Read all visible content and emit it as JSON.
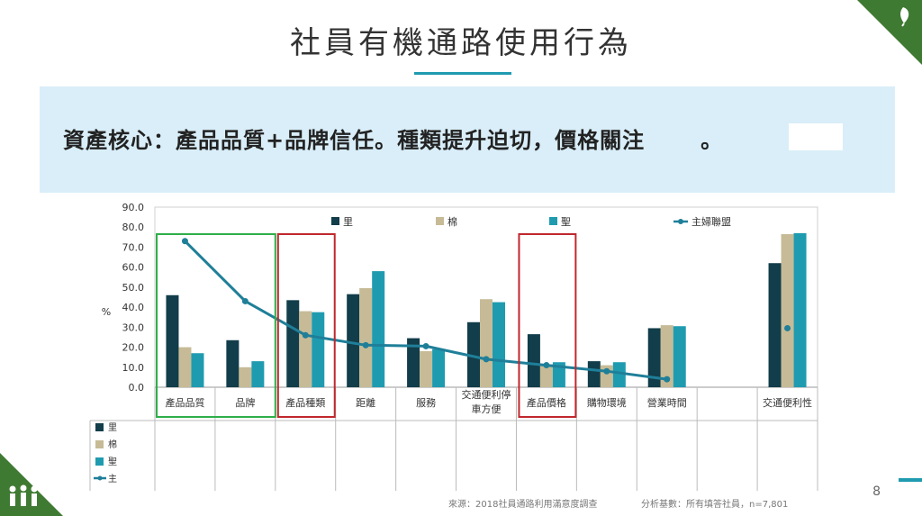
{
  "title": "社員有機通路使用行為",
  "banner": {
    "text": "資產核心：產品品質+品牌信任。種類提升迫切，價格關注",
    "suffix": "。"
  },
  "page_number": "8",
  "source": "來源：2018社員通路利用滿意度調查",
  "basis": "分析基數：所有填答社員，n=7,801",
  "colors": {
    "s1": "#123d4a",
    "s2": "#c6bb96",
    "s3": "#1f9bb0",
    "line": "#1f7f99",
    "green_box": "#2fae4a",
    "red_box": "#c0272d"
  },
  "chart_data": {
    "type": "bar",
    "categories": [
      "產品品質",
      "品牌",
      "產品種類",
      "距離",
      "服務",
      "交通便利停|車方便",
      "產品價格",
      "購物環境",
      "營業時間",
      "",
      "交通便利性"
    ],
    "ylabel": "%",
    "ylim": [
      0,
      90
    ],
    "yticks": [
      "90.0",
      "80.0",
      "70.0",
      "60.0",
      "50.0",
      "40.0",
      "30.0",
      "20.0",
      "10.0",
      "0.0"
    ],
    "series": [
      {
        "name": "里",
        "values": [
          46,
          23.5,
          43.5,
          46.5,
          24.5,
          32.5,
          26.5,
          13,
          29.5,
          null,
          62
        ]
      },
      {
        "name": "棉",
        "values": [
          20,
          10,
          38,
          49.5,
          18,
          44,
          11.5,
          11,
          31,
          null,
          76.5
        ]
      },
      {
        "name": "聖",
        "values": [
          17,
          13,
          37.5,
          58,
          19,
          42.5,
          12.5,
          12.5,
          30.5,
          null,
          77
        ]
      }
    ],
    "line_series": {
      "name": "主婦聯盟",
      "values": [
        73,
        43,
        26,
        21,
        20.5,
        14,
        11,
        8,
        4,
        null,
        29.5
      ]
    },
    "legend_top": [
      "里",
      "棉",
      "聖",
      "主婦聯盟"
    ],
    "legend_side": [
      "里",
      "棉",
      "聖",
      "主"
    ],
    "legend": "top",
    "highlight_green": [
      "產品品質",
      "品牌"
    ],
    "highlight_red": [
      "產品種類",
      "產品價格"
    ]
  }
}
